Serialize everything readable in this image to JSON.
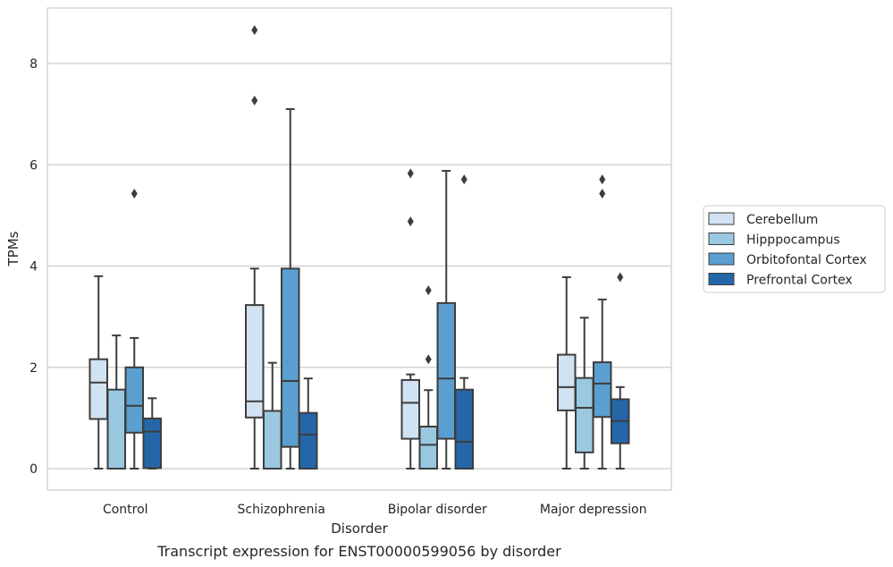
{
  "caption": "Transcript expression for ENST00000599056 by disorder",
  "chart_data": {
    "type": "boxplot",
    "xlabel": "Disorder",
    "ylabel": "TPMs",
    "ylim": [
      -0.42,
      9.1
    ],
    "yticks": [
      0,
      2,
      4,
      6,
      8
    ],
    "grid": "horizontal",
    "legend_placement": "right",
    "categories": [
      "Control",
      "Schizophrenia",
      "Bipolar disorder",
      "Major depression"
    ],
    "series": [
      {
        "name": "Cerebellum",
        "color": "#d1e2f2",
        "boxes": [
          {
            "whisker_low": 0,
            "q1": 0.98,
            "median": 1.7,
            "q3": 2.16,
            "whisker_high": 3.8,
            "outliers": []
          },
          {
            "whisker_low": 0,
            "q1": 1.01,
            "median": 1.33,
            "q3": 3.23,
            "whisker_high": 3.95,
            "outliers": [
              7.27,
              8.66
            ]
          },
          {
            "whisker_low": 0,
            "q1": 0.59,
            "median": 1.3,
            "q3": 1.75,
            "whisker_high": 1.86,
            "outliers": [
              4.88,
              5.83
            ]
          },
          {
            "whisker_low": 0,
            "q1": 1.15,
            "median": 1.61,
            "q3": 2.25,
            "whisker_high": 3.78,
            "outliers": []
          }
        ]
      },
      {
        "name": "Hipppocampus",
        "color": "#9ac8e0",
        "boxes": [
          {
            "whisker_low": 0,
            "q1": 0,
            "median": 0,
            "q3": 1.56,
            "whisker_high": 2.63,
            "outliers": []
          },
          {
            "whisker_low": 0,
            "q1": 0,
            "median": 0,
            "q3": 1.14,
            "whisker_high": 2.09,
            "outliers": []
          },
          {
            "whisker_low": 0,
            "q1": 0,
            "median": 0.47,
            "q3": 0.83,
            "whisker_high": 1.55,
            "outliers": [
              2.16,
              3.52
            ]
          },
          {
            "whisker_low": 0,
            "q1": 0.32,
            "median": 1.2,
            "q3": 1.79,
            "whisker_high": 2.98,
            "outliers": []
          }
        ]
      },
      {
        "name": "Orbitofontal Cortex",
        "color": "#5a9fcf",
        "boxes": [
          {
            "whisker_low": 0,
            "q1": 0.71,
            "median": 1.24,
            "q3": 2.0,
            "whisker_high": 2.58,
            "outliers": [
              5.43
            ]
          },
          {
            "whisker_low": 0,
            "q1": 0.43,
            "median": 1.73,
            "q3": 3.95,
            "whisker_high": 7.1,
            "outliers": []
          },
          {
            "whisker_low": 0,
            "q1": 0.59,
            "median": 1.78,
            "q3": 3.27,
            "whisker_high": 5.88,
            "outliers": []
          },
          {
            "whisker_low": 0,
            "q1": 1.02,
            "median": 1.68,
            "q3": 2.1,
            "whisker_high": 3.34,
            "outliers": [
              5.43,
              5.71
            ]
          }
        ]
      },
      {
        "name": "Prefrontal Cortex",
        "color": "#2566a9",
        "boxes": [
          {
            "whisker_low": 0,
            "q1": 0.01,
            "median": 0.73,
            "q3": 0.99,
            "whisker_high": 1.39,
            "outliers": []
          },
          {
            "whisker_low": 0,
            "q1": 0,
            "median": 0.67,
            "q3": 1.1,
            "whisker_high": 1.78,
            "outliers": []
          },
          {
            "whisker_low": 0,
            "q1": 0,
            "median": 0.53,
            "q3": 1.56,
            "whisker_high": 1.79,
            "outliers": [
              5.71
            ]
          },
          {
            "whisker_low": 0,
            "q1": 0.5,
            "median": 0.94,
            "q3": 1.37,
            "whisker_high": 1.61,
            "outliers": [
              3.78
            ]
          }
        ]
      }
    ]
  }
}
